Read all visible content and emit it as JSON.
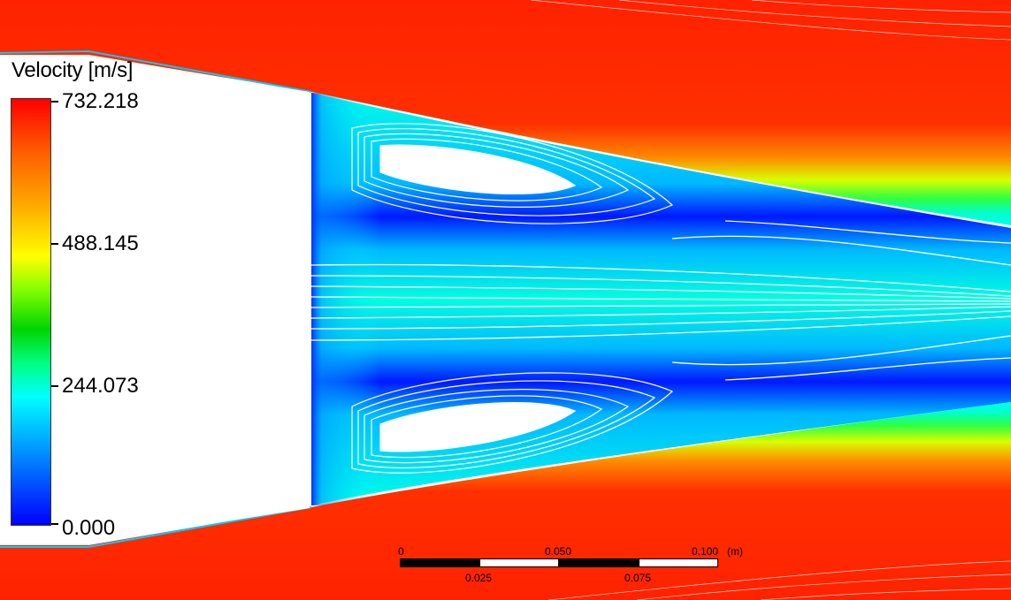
{
  "legend": {
    "title": "Velocity [m/s]",
    "ticks": [
      "732.218",
      "488.145",
      "244.073",
      "0.000"
    ],
    "colormap": [
      "#0000ff",
      "#00aaff",
      "#00ffff",
      "#00ff80",
      "#00d400",
      "#80ff00",
      "#ffff00",
      "#ffaa00",
      "#ff5a00",
      "#ff0000"
    ]
  },
  "scale_bar": {
    "top_labels": [
      "0",
      "0.050",
      "0.100"
    ],
    "unit": "(m)",
    "bottom_labels": [
      "0.025",
      "0.075"
    ]
  }
}
